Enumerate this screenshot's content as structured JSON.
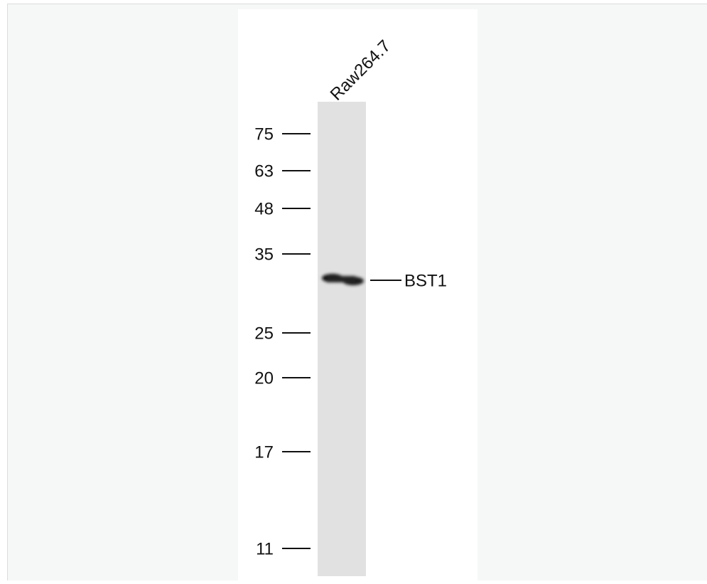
{
  "blot": {
    "lane_label": "Raw264.7",
    "band_label": "BST1",
    "markers": [
      "75",
      "63",
      "48",
      "35",
      "25",
      "20",
      "17",
      "11"
    ]
  }
}
